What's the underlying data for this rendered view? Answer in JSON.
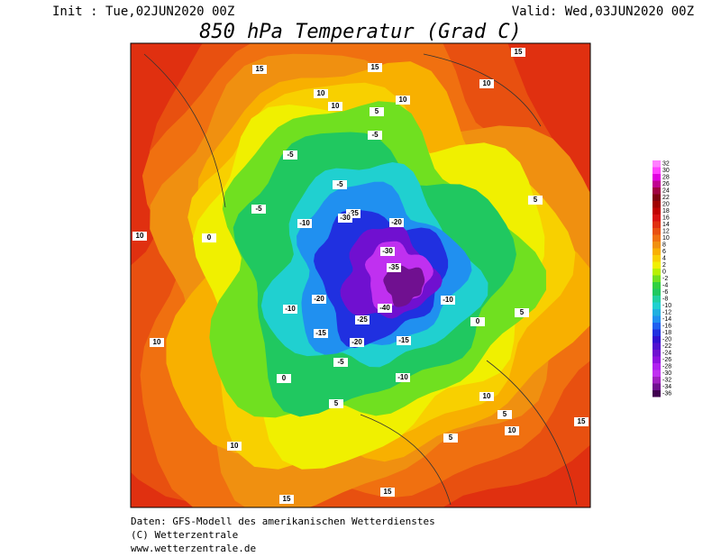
{
  "header": {
    "init": "Init : Tue,02JUN2020 00Z",
    "valid": "Valid: Wed,03JUN2020 00Z",
    "title": "850 hPa Temperatur (Grad C)"
  },
  "footer": [
    "Daten: GFS-Modell des amerikanischen Wetterdienstes",
    "(C) Wetterzentrale",
    "www.wetterzentrale.de"
  ],
  "colorbar": {
    "levels": [
      32,
      30,
      28,
      26,
      24,
      22,
      20,
      18,
      16,
      14,
      12,
      10,
      8,
      6,
      4,
      2,
      0,
      -2,
      -4,
      -6,
      -8,
      -10,
      -12,
      -14,
      -16,
      -18,
      -20,
      -22,
      -24,
      -26,
      -28,
      -30,
      -32,
      -34,
      -36
    ],
    "colors": [
      "#ff80ff",
      "#ff40ff",
      "#e000e0",
      "#c00090",
      "#a00040",
      "#800010",
      "#a00000",
      "#c00000",
      "#d81010",
      "#e03010",
      "#e85010",
      "#f07010",
      "#f09010",
      "#f8b000",
      "#f8d000",
      "#f0f000",
      "#b8f000",
      "#70e020",
      "#30d040",
      "#20c860",
      "#20d0a0",
      "#20d0d0",
      "#20b0e0",
      "#2090f0",
      "#2060f0",
      "#2030e0",
      "#3010d0",
      "#5010d0",
      "#7010d0",
      "#9010e0",
      "#b020f0",
      "#c030f0",
      "#a020c0",
      "#701090",
      "#400050"
    ]
  },
  "contour_labels": [
    15,
    15,
    15,
    10,
    10,
    10,
    10,
    10,
    5,
    5,
    5,
    0,
    0,
    -5,
    -5,
    -5,
    -5,
    -5,
    -10,
    -10,
    -10,
    -10,
    -15,
    -15,
    -20,
    -20,
    -20,
    -25,
    -25,
    -30,
    -30,
    -35,
    -40,
    10,
    10,
    15,
    15,
    5,
    5,
    0,
    10,
    10,
    15,
    5
  ]
}
